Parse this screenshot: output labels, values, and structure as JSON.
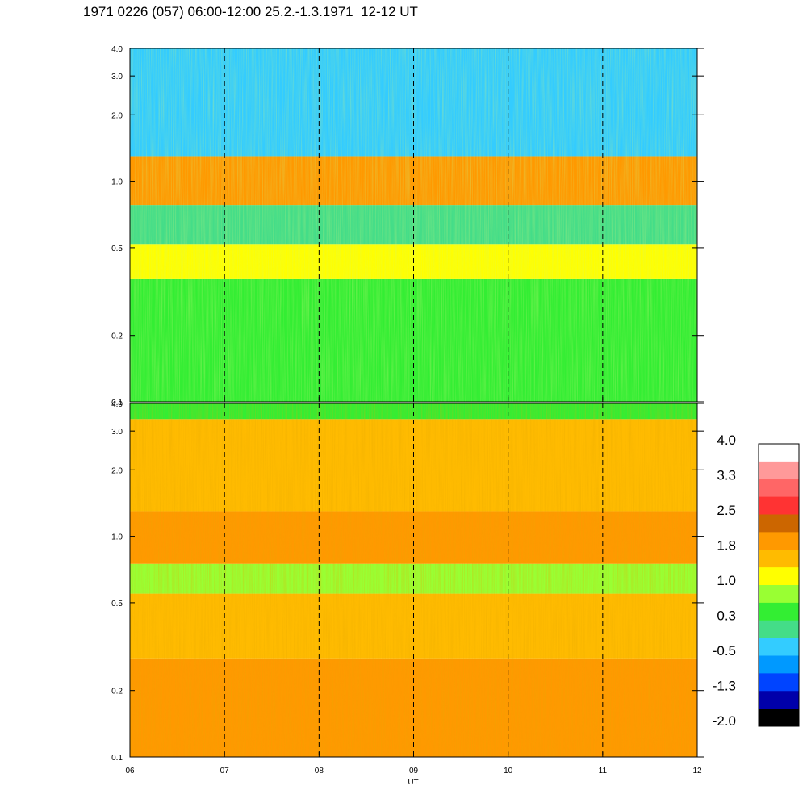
{
  "title": "1971 0226 (057) 06:00-12:00 25.2.-1.3.1971  12-12 UT",
  "chart_data": [
    {
      "type": "heatmap",
      "panel": "upper",
      "x_range": [
        "06",
        "12"
      ],
      "y_scale": "log",
      "y_range": [
        0.1,
        4.0
      ],
      "y_ticks": [
        "0.1",
        "0.2",
        "0.5",
        "1.0",
        "2.0",
        "3.0",
        "4.0"
      ],
      "x_ticks": [
        "06",
        "07",
        "08",
        "09",
        "10",
        "11",
        "12"
      ],
      "y_bands": [
        {
          "y_from": 0.1,
          "y_to": 0.36,
          "value": 0.6
        },
        {
          "y_from": 0.36,
          "y_to": 0.52,
          "value": 1.1
        },
        {
          "y_from": 0.52,
          "y_to": 0.78,
          "value": 0.2
        },
        {
          "y_from": 0.78,
          "y_to": 1.3,
          "value": 1.9
        },
        {
          "y_from": 1.3,
          "y_to": 4.0,
          "value": -0.3
        }
      ]
    },
    {
      "type": "heatmap",
      "panel": "lower",
      "x_range": [
        "06",
        "12"
      ],
      "xlabel": "UT",
      "y_scale": "log",
      "y_range": [
        0.1,
        4.0
      ],
      "y_ticks": [
        "0.1",
        "0.2",
        "0.5",
        "1.0",
        "2.0",
        "3.0",
        "4.0"
      ],
      "x_ticks": [
        "06",
        "07",
        "08",
        "09",
        "10",
        "11",
        "12"
      ],
      "y_bands": [
        {
          "y_from": 0.1,
          "y_to": 0.28,
          "value": 2.0
        },
        {
          "y_from": 0.28,
          "y_to": 0.55,
          "value": 1.4
        },
        {
          "y_from": 0.55,
          "y_to": 0.75,
          "value": 1.0
        },
        {
          "y_from": 0.75,
          "y_to": 1.3,
          "value": 1.9
        },
        {
          "y_from": 1.3,
          "y_to": 3.4,
          "value": 1.6
        },
        {
          "y_from": 3.4,
          "y_to": 4.0,
          "value": 0.6
        }
      ]
    }
  ],
  "colorbar": {
    "labels": [
      "4.0",
      "3.3",
      "2.5",
      "1.8",
      "1.0",
      "0.3",
      "-0.5",
      "-1.3",
      "-2.0"
    ],
    "colors": [
      "#ffffff",
      "#ff9999",
      "#ff6666",
      "#ff3333",
      "#cc6600",
      "#ff9900",
      "#ffbb00",
      "#ffff00",
      "#99ff33",
      "#33ee33",
      "#44dd88",
      "#33ccff",
      "#0099ff",
      "#0044ff",
      "#0000aa",
      "#000000"
    ]
  }
}
